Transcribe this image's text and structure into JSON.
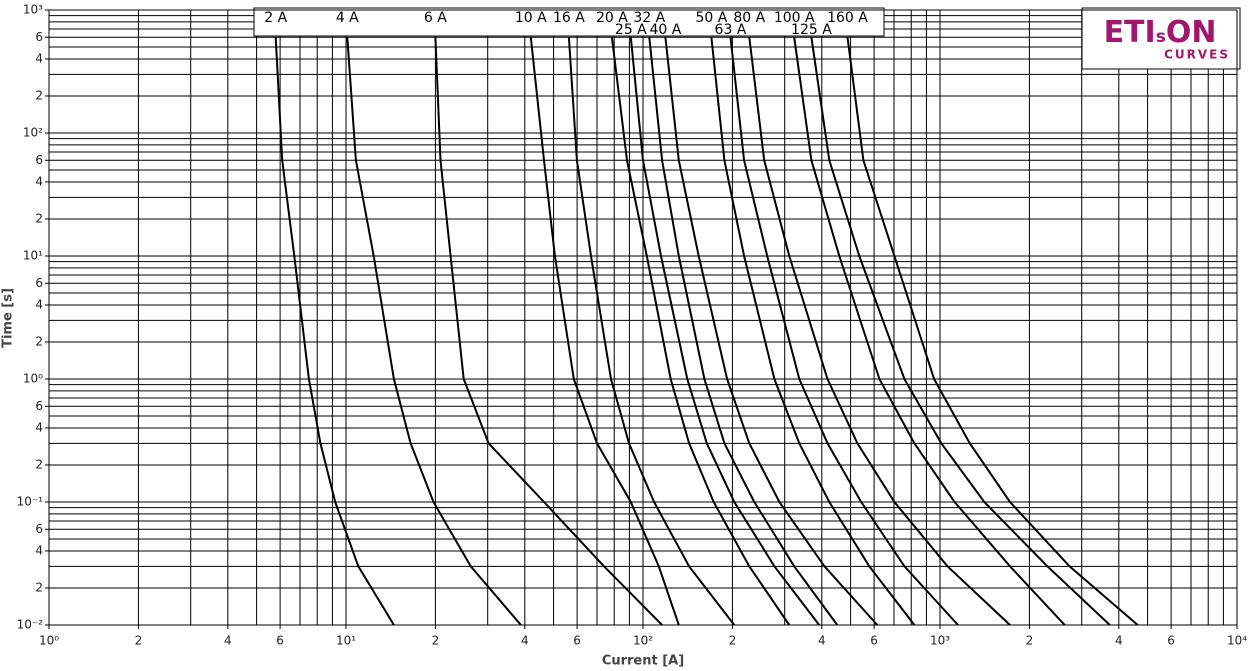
{
  "chart_data": {
    "type": "line",
    "xlabel": "Current [A]",
    "ylabel": "Time [s]",
    "xscale": "log",
    "yscale": "log",
    "grid": true,
    "line_color": "#000000",
    "xlim": [
      1,
      10000
    ],
    "ylim": [
      0.01,
      1000
    ],
    "xticks": [
      {
        "value": 1,
        "label": "10⁰"
      },
      2,
      4,
      6,
      {
        "value": 10,
        "label": "10¹"
      },
      {
        "value": 20,
        "label": "2"
      },
      {
        "value": 40,
        "label": "4"
      },
      {
        "value": 60,
        "label": "6"
      },
      {
        "value": 100,
        "label": "10²"
      },
      {
        "value": 200,
        "label": "2"
      },
      {
        "value": 400,
        "label": "4"
      },
      {
        "value": 600,
        "label": "6"
      },
      {
        "value": 1000,
        "label": "10³"
      },
      {
        "value": 2000,
        "label": "2"
      },
      {
        "value": 4000,
        "label": "4"
      },
      {
        "value": 6000,
        "label": "6"
      },
      {
        "value": 10000,
        "label": "10⁴"
      }
    ],
    "yticks": [
      {
        "value": 0.01,
        "label": "10⁻²"
      },
      {
        "value": 0.02,
        "label": "2"
      },
      {
        "value": 0.04,
        "label": "4"
      },
      {
        "value": 0.06,
        "label": "6"
      },
      {
        "value": 0.1,
        "label": "10⁻¹"
      },
      {
        "value": 0.2,
        "label": "2"
      },
      {
        "value": 0.4,
        "label": "4"
      },
      {
        "value": 0.6,
        "label": "6"
      },
      {
        "value": 1,
        "label": "10⁰"
      },
      2,
      4,
      6,
      {
        "value": 10,
        "label": "10¹"
      },
      {
        "value": 20,
        "label": "2"
      },
      {
        "value": 40,
        "label": "4"
      },
      {
        "value": 60,
        "label": "6"
      },
      {
        "value": 100,
        "label": "10²"
      },
      {
        "value": 200,
        "label": "2"
      },
      {
        "value": 400,
        "label": "4"
      },
      {
        "value": 600,
        "label": "6"
      },
      {
        "value": 1000,
        "label": "10³"
      }
    ],
    "xgrid": [
      1,
      2,
      3,
      4,
      5,
      6,
      7,
      8,
      9,
      10,
      20,
      30,
      40,
      50,
      60,
      70,
      80,
      90,
      100,
      200,
      300,
      400,
      500,
      600,
      700,
      800,
      900,
      1000,
      2000,
      3000,
      4000,
      5000,
      6000,
      7000,
      8000,
      9000,
      10000
    ],
    "ygrid": [
      0.01,
      0.02,
      0.03,
      0.04,
      0.05,
      0.06,
      0.07,
      0.08,
      0.09,
      0.1,
      0.2,
      0.3,
      0.4,
      0.5,
      0.6,
      0.7,
      0.8,
      0.9,
      1,
      2,
      3,
      4,
      5,
      6,
      7,
      8,
      9,
      10,
      20,
      30,
      40,
      50,
      60,
      70,
      80,
      90,
      100,
      200,
      300,
      400,
      500,
      600,
      700,
      800,
      900,
      1000
    ],
    "series": [
      {
        "name": "2 A",
        "x": [
          5.8,
          6.1,
          6.7,
          7.5,
          8.2,
          9.2,
          11.0,
          14.5
        ],
        "values": [
          600,
          60,
          10,
          1,
          0.3,
          0.1,
          0.03,
          0.01
        ]
      },
      {
        "name": "4 A",
        "x": [
          10.1,
          10.8,
          12.4,
          14.5,
          16.5,
          19.7,
          26.3,
          38.8
        ],
        "values": [
          600,
          60,
          10,
          1,
          0.3,
          0.1,
          0.03,
          0.01
        ]
      },
      {
        "name": "6 A",
        "x": [
          20,
          20.8,
          22.5,
          24.9,
          30.2,
          46.4,
          73.9,
          116
        ],
        "values": [
          600,
          60,
          10,
          1,
          0.3,
          0.1,
          0.03,
          0.01
        ]
      },
      {
        "name": "10 A",
        "x": [
          41.9,
          46.4,
          50.5,
          58.5,
          70,
          91,
          113,
          132
        ],
        "values": [
          600,
          60,
          10,
          1,
          0.3,
          0.1,
          0.03,
          0.01
        ]
      },
      {
        "name": "16 A",
        "x": [
          56.3,
          59.9,
          66.8,
          78,
          89.7,
          109,
          143,
          203
        ],
        "values": [
          600,
          60,
          10,
          1,
          0.3,
          0.1,
          0.03,
          0.01
        ]
      },
      {
        "name": "20 A",
        "x": [
          78.6,
          88.3,
          103,
          124,
          143,
          173,
          228,
          311
        ],
        "values": [
          600,
          60,
          10,
          1,
          0.3,
          0.1,
          0.03,
          0.01
        ]
      },
      {
        "name": "25 A",
        "x": [
          91,
          100,
          115,
          141,
          164,
          203,
          277,
          392
        ],
        "values": [
          600,
          60,
          10,
          1,
          0.3,
          0.1,
          0.03,
          0.01
        ]
      },
      {
        "name": "32 A",
        "x": [
          105,
          116,
          132,
          161,
          188,
          237,
          323,
          451
        ],
        "values": [
          600,
          60,
          10,
          1,
          0.3,
          0.1,
          0.03,
          0.01
        ]
      },
      {
        "name": "40 A",
        "x": [
          119,
          132,
          154,
          192,
          228,
          288,
          408,
          615
        ],
        "values": [
          600,
          60,
          10,
          1,
          0.3,
          0.1,
          0.03,
          0.01
        ]
      },
      {
        "name": "50 A",
        "x": [
          170,
          188,
          219,
          277,
          336,
          424,
          578,
          820
        ],
        "values": [
          600,
          60,
          10,
          1,
          0.3,
          0.1,
          0.03,
          0.01
        ]
      },
      {
        "name": "63 A",
        "x": [
          197,
          219,
          262,
          336,
          418,
          543,
          759,
          1150
        ],
        "values": [
          600,
          60,
          10,
          1,
          0.3,
          0.1,
          0.03,
          0.01
        ]
      },
      {
        "name": "80 A",
        "x": [
          228,
          256,
          311,
          418,
          527,
          702,
          1060,
          1720
        ],
        "values": [
          600,
          60,
          10,
          1,
          0.3,
          0.1,
          0.03,
          0.01
        ]
      },
      {
        "name": "100 A",
        "x": [
          323,
          369,
          458,
          625,
          820,
          1120,
          1720,
          2630
        ],
        "values": [
          600,
          60,
          10,
          1,
          0.3,
          0.1,
          0.03,
          0.01
        ]
      },
      {
        "name": "125 A",
        "x": [
          369,
          424,
          535,
          759,
          1010,
          1410,
          2300,
          3730
        ],
        "values": [
          600,
          60,
          10,
          1,
          0.3,
          0.1,
          0.03,
          0.01
        ]
      },
      {
        "name": "160 A",
        "x": [
          488,
          552,
          702,
          955,
          1260,
          1720,
          2730,
          4630
        ],
        "values": [
          600,
          60,
          10,
          1,
          0.3,
          0.1,
          0.03,
          0.01
        ]
      }
    ],
    "logo": {
      "brand_parts": [
        "ETI",
        "s",
        "ON"
      ],
      "tagline": "CURVES"
    }
  }
}
